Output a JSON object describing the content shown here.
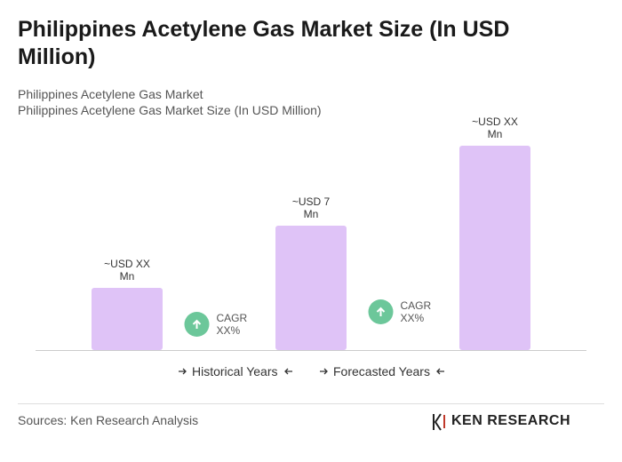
{
  "chart_data": {
    "type": "bar",
    "title": "Philippines Acetylene Gas Market Size (In USD Million)",
    "subtitle": "Philippines Acetylene Gas Market",
    "y_label": "Philippines Acetylene Gas Market Size (In USD Million)",
    "values": [
      3.5,
      7,
      11.5
    ],
    "value_labels": [
      "~USD XX Mn",
      "~USD 7 Mn",
      "~USD XX Mn"
    ],
    "color": "#dfc3f7",
    "annotations": [
      "CAGR XX%",
      "CAGR XX%"
    ],
    "annotation_color": "#6cc79a",
    "legend": [
      "Historical Years",
      "Forecasted Years"
    ],
    "source": "Sources: Ken Research Analysis",
    "logo": "KEN RESEARCH"
  }
}
